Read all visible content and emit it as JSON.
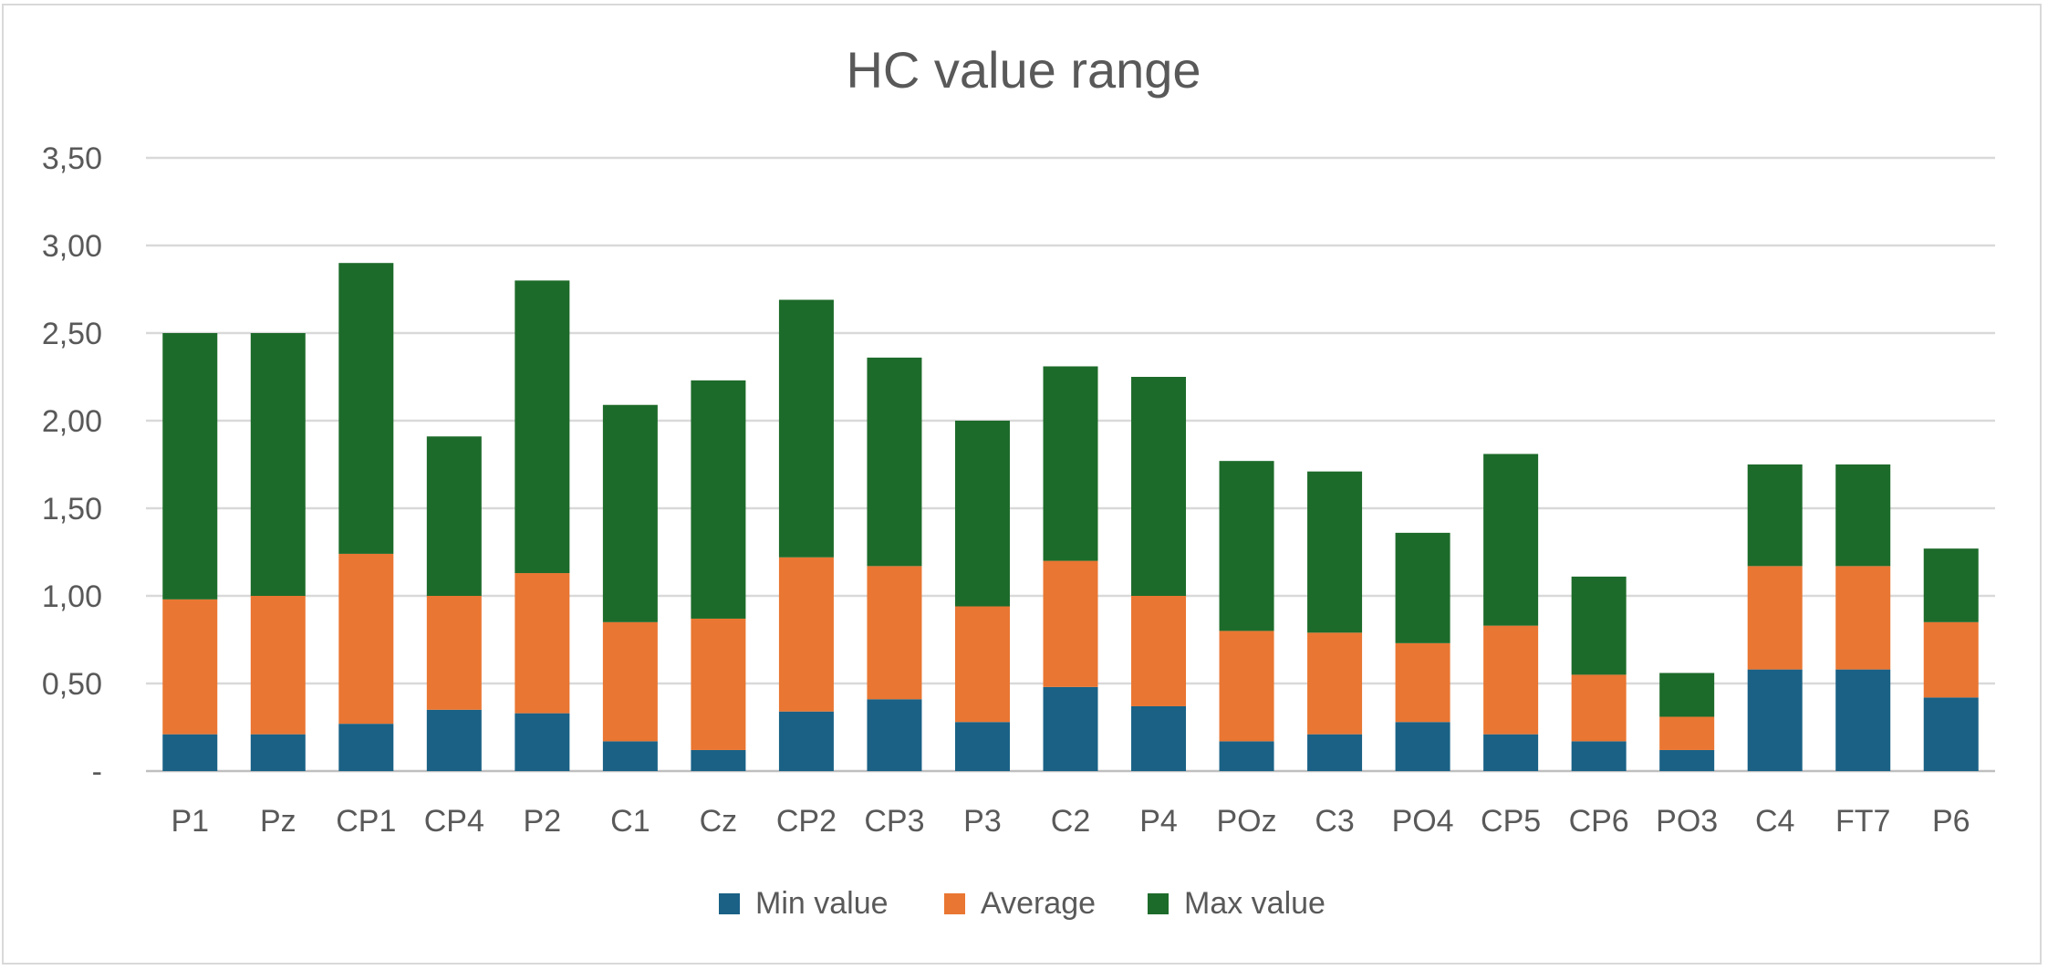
{
  "chart_data": {
    "type": "bar",
    "stacked": true,
    "title": "HC value range",
    "xlabel": "",
    "ylabel": "",
    "categories": [
      "P1",
      "Pz",
      "CP1",
      "CP4",
      "P2",
      "C1",
      "Cz",
      "CP2",
      "CP3",
      "P3",
      "C2",
      "P4",
      "POz",
      "C3",
      "PO4",
      "CP5",
      "CP6",
      "PO3",
      "C4",
      "FT7",
      "P6"
    ],
    "series": [
      {
        "name": "Min value",
        "color": "#1a6185",
        "values": [
          0.21,
          0.21,
          0.27,
          0.35,
          0.33,
          0.17,
          0.12,
          0.34,
          0.41,
          0.28,
          0.48,
          0.37,
          0.17,
          0.21,
          0.28,
          0.21,
          0.17,
          0.12,
          0.58,
          0.58,
          0.42
        ]
      },
      {
        "name": "Average",
        "color": "#e97632",
        "values": [
          0.77,
          0.79,
          0.97,
          0.65,
          0.8,
          0.68,
          0.75,
          0.88,
          0.76,
          0.66,
          0.72,
          0.63,
          0.63,
          0.58,
          0.45,
          0.62,
          0.38,
          0.19,
          0.59,
          0.59,
          0.43
        ]
      },
      {
        "name": "Max value",
        "color": "#1d6b2a",
        "values": [
          1.52,
          1.5,
          1.66,
          0.91,
          1.67,
          1.24,
          1.36,
          1.47,
          1.19,
          1.06,
          1.11,
          1.25,
          0.97,
          0.92,
          0.63,
          0.98,
          0.56,
          0.25,
          0.58,
          0.58,
          0.42
        ]
      }
    ],
    "ylim": [
      0,
      3.5
    ],
    "yticks": [
      0,
      0.5,
      1.0,
      1.5,
      2.0,
      2.5,
      3.0,
      3.5
    ],
    "ytick_labels": [
      "-",
      "0,50",
      "1,00",
      "1,50",
      "2,00",
      "2,50",
      "3,00",
      "3,50"
    ],
    "grid": true,
    "legend": "bottom"
  }
}
